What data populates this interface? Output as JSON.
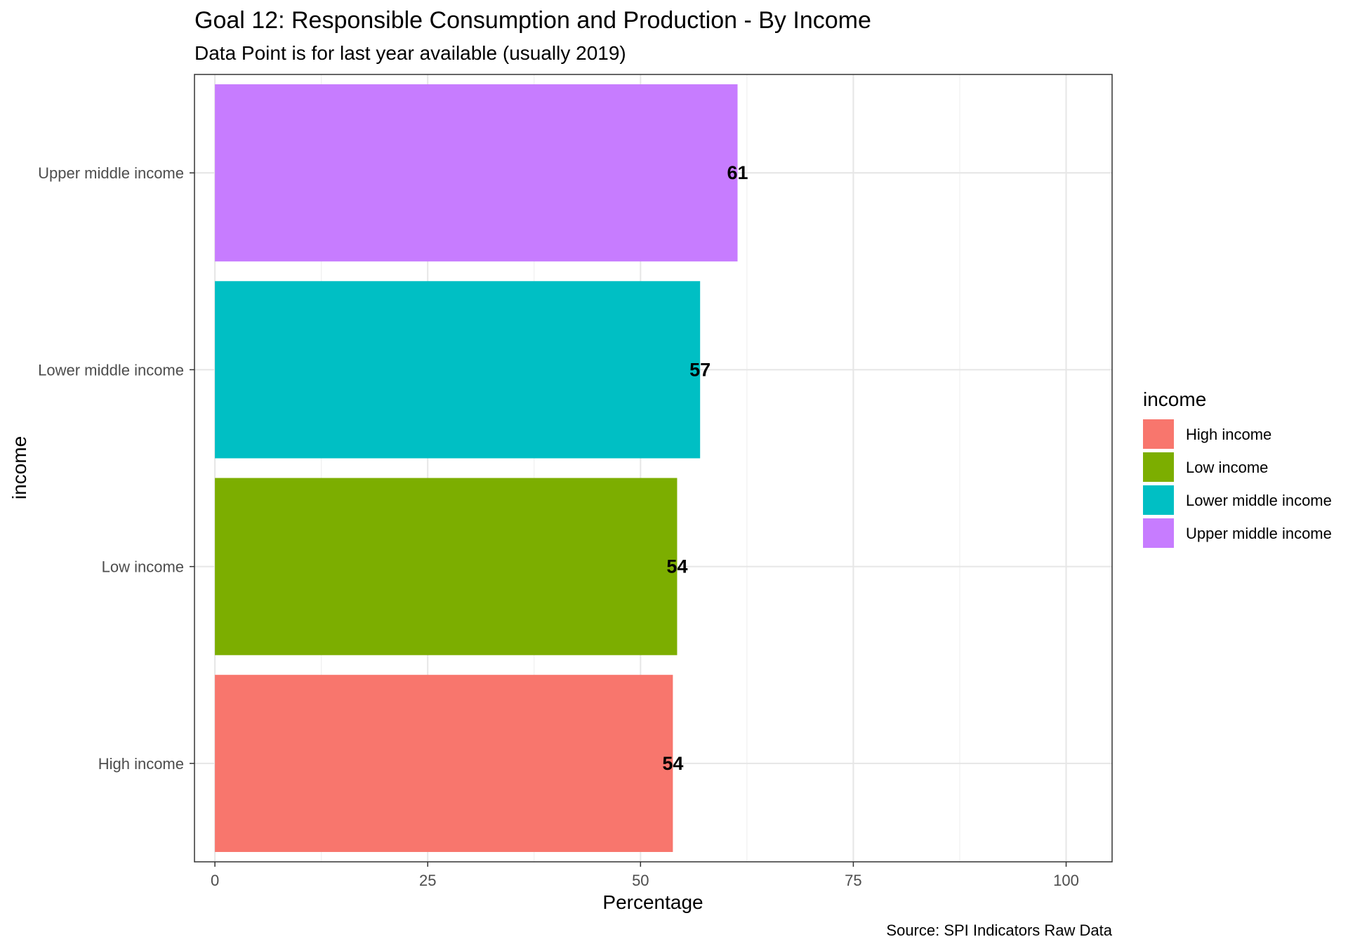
{
  "chart_data": {
    "type": "bar",
    "orientation": "horizontal",
    "title": "Goal 12: Responsible Consumption and Production - By Income",
    "subtitle": "Data Point is for last year available (usually 2019)",
    "xlabel": "Percentage",
    "ylabel": "income",
    "caption": "Source: SPI Indicators Raw Data",
    "xlim": [
      -2.4,
      105.4
    ],
    "xticks": [
      0,
      25,
      50,
      75,
      100
    ],
    "grid": true,
    "categories": [
      "High income",
      "Low income",
      "Lower middle income",
      "Upper middle income"
    ],
    "values": [
      53.8,
      54.3,
      57,
      61.4
    ],
    "data_labels": [
      "54",
      "54",
      "57",
      "61"
    ],
    "colors": [
      "#F8766D",
      "#7CAE00",
      "#00BFC4",
      "#C77CFF"
    ],
    "legend": {
      "title": "income",
      "placement": "right",
      "entries": [
        "High income",
        "Low income",
        "Lower middle income",
        "Upper middle income"
      ]
    }
  }
}
